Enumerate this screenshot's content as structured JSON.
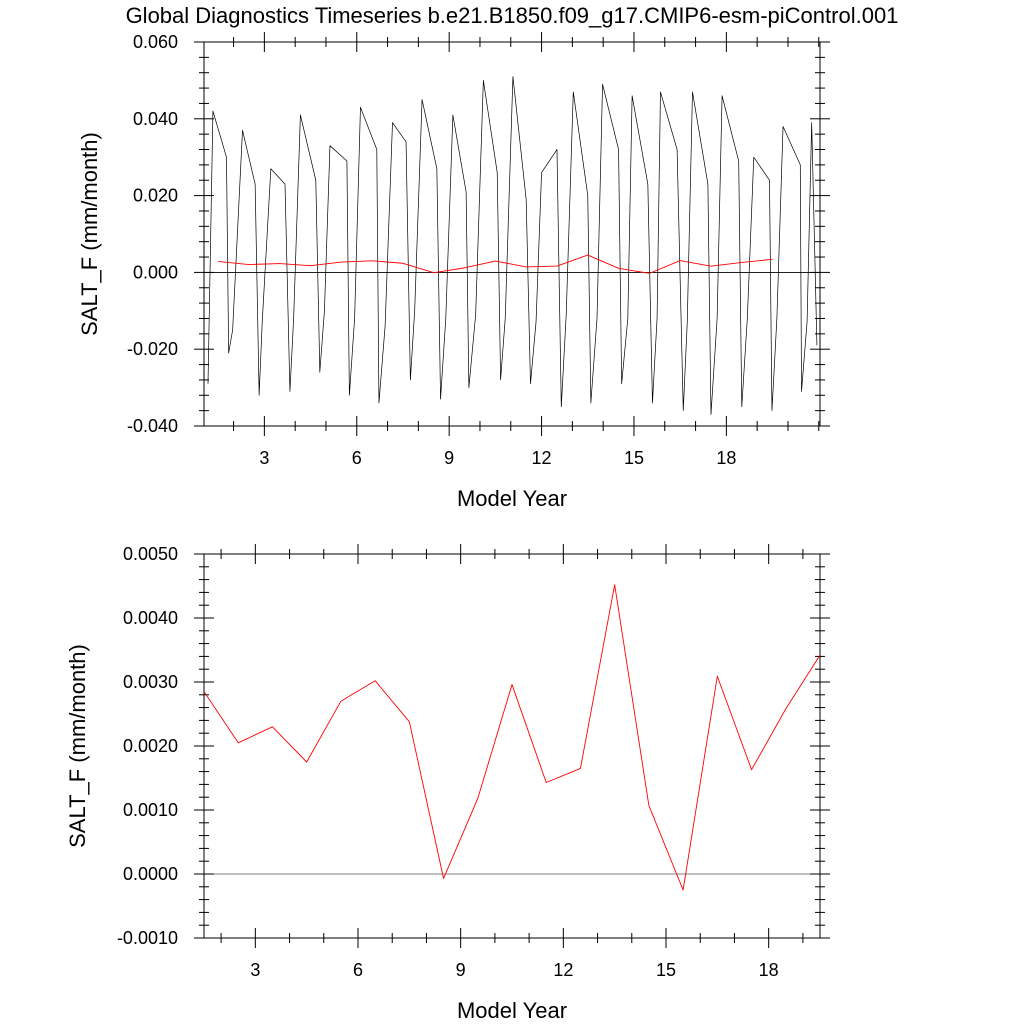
{
  "figure": {
    "title": "Global Diagnostics Timeseries b.e21.B1850.f09_g17.CMIP6-esm-piControl.001"
  },
  "chart_data": [
    {
      "type": "line",
      "xlabel": "Model Year",
      "ylabel": "SALT_F (mm/month)",
      "xlim": [
        1.04,
        21.04
      ],
      "ylim": [
        -0.04,
        0.06
      ],
      "xticks": [
        3,
        6,
        9,
        12,
        15,
        18
      ],
      "xtick_labels": [
        "3",
        "6",
        "9",
        "12",
        "15",
        "18"
      ],
      "yticks": [
        -0.04,
        -0.02,
        0.0,
        0.02,
        0.04,
        0.06
      ],
      "ytick_labels": [
        "-0.040",
        "-0.020",
        "0.000",
        "0.020",
        "0.040",
        "0.060"
      ],
      "reference_line_y": 0.0,
      "grid": false,
      "series": [
        {
          "color": "#000000",
          "peak_times": [
            1.33,
            2.29,
            3.21,
            4.17,
            5.13,
            6.12,
            7.16,
            8.12,
            9.12,
            10.11,
            11.07,
            12.0,
            13.03,
            13.98,
            14.94,
            15.86,
            16.9,
            17.86,
            18.89,
            19.84,
            20.77
          ],
          "peak_values": [
            0.042,
            0.037,
            0.027,
            0.041,
            0.033,
            0.043,
            0.039,
            0.045,
            0.041,
            0.05,
            0.051,
            0.026,
            0.047,
            0.049,
            0.046,
            0.047,
            0.047,
            0.046,
            0.03,
            0.038,
            0.039
          ],
          "trough_times": [
            1.17,
            1.84,
            2.83,
            3.83,
            4.8,
            5.76,
            6.72,
            7.74,
            8.72,
            9.64,
            10.67,
            11.64,
            12.64,
            13.6,
            14.6,
            15.6,
            16.6,
            17.5,
            18.5,
            19.48,
            20.44,
            20.94
          ],
          "trough_values": [
            -0.029,
            -0.021,
            -0.032,
            -0.031,
            -0.026,
            -0.032,
            -0.034,
            -0.028,
            -0.033,
            -0.03,
            -0.028,
            -0.029,
            -0.035,
            -0.034,
            -0.029,
            -0.034,
            -0.036,
            -0.037,
            -0.035,
            -0.036,
            -0.031,
            -0.019
          ],
          "secondary_peak_times": [
            1.77,
            2.7,
            3.67,
            4.67,
            5.68,
            6.65,
            7.6,
            8.6,
            9.55,
            10.56,
            11.5,
            12.5,
            13.5,
            14.5,
            15.45,
            16.4,
            17.4,
            18.4,
            19.4,
            20.4
          ],
          "secondary_peak_values": [
            0.03,
            0.023,
            0.023,
            0.024,
            0.029,
            0.032,
            0.034,
            0.027,
            0.021,
            0.026,
            0.019,
            0.032,
            0.02,
            0.032,
            0.023,
            0.032,
            0.023,
            0.029,
            0.024,
            0.028
          ],
          "secondary_trough_times": [
            1.97,
            2.93,
            3.95,
            4.95,
            5.93,
            6.92,
            7.88,
            8.89,
            9.86,
            10.82,
            11.82,
            12.8,
            13.8,
            14.8,
            15.75,
            16.73,
            17.7,
            18.68,
            19.64,
            20.62
          ],
          "secondary_trough_values": [
            -0.015,
            -0.013,
            -0.012,
            -0.01,
            -0.012,
            -0.014,
            -0.01,
            -0.012,
            -0.011,
            -0.012,
            -0.013,
            -0.011,
            -0.012,
            -0.012,
            -0.012,
            -0.013,
            -0.012,
            -0.012,
            -0.012,
            -0.013
          ]
        },
        {
          "color": "#ff0000",
          "x": [
            1.5,
            2.5,
            3.5,
            4.5,
            5.5,
            6.5,
            7.5,
            8.5,
            9.5,
            10.5,
            11.5,
            12.5,
            13.5,
            14.5,
            15.5,
            16.5,
            17.5,
            18.5,
            19.5
          ],
          "values": [
            0.00285,
            0.00205,
            0.0023,
            0.00175,
            0.0027,
            0.00302,
            0.00238,
            -7e-05,
            0.00118,
            0.00296,
            0.00143,
            0.00165,
            0.00452,
            0.00107,
            -0.00025,
            0.00309,
            0.00163,
            0.00258,
            0.00342
          ]
        }
      ]
    },
    {
      "type": "line",
      "xlabel": "Model Year",
      "ylabel": "SALT_F (mm/month)",
      "xlim": [
        1.5,
        19.5
      ],
      "ylim": [
        -0.001,
        0.005
      ],
      "xticks": [
        3,
        6,
        9,
        12,
        15,
        18
      ],
      "xtick_labels": [
        "3",
        "6",
        "9",
        "12",
        "15",
        "18"
      ],
      "yticks": [
        -0.001,
        0.0,
        0.001,
        0.002,
        0.003,
        0.004,
        0.005
      ],
      "ytick_labels": [
        "-0.0010",
        "0.0000",
        "0.0010",
        "0.0020",
        "0.0030",
        "0.0040",
        "0.0050"
      ],
      "reference_line_y": 0.0,
      "grid": false,
      "series": [
        {
          "color": "#ff0000",
          "x": [
            1.5,
            2.5,
            3.5,
            4.5,
            5.5,
            6.5,
            7.5,
            8.5,
            9.5,
            10.5,
            11.5,
            12.5,
            13.5,
            14.5,
            15.5,
            16.5,
            17.5,
            18.5,
            19.5
          ],
          "values": [
            0.00285,
            0.00205,
            0.0023,
            0.00175,
            0.0027,
            0.00302,
            0.00238,
            -7e-05,
            0.00118,
            0.00296,
            0.00143,
            0.00165,
            0.00452,
            0.00107,
            -0.00025,
            0.00309,
            0.00163,
            0.00258,
            0.00342
          ]
        }
      ]
    }
  ]
}
